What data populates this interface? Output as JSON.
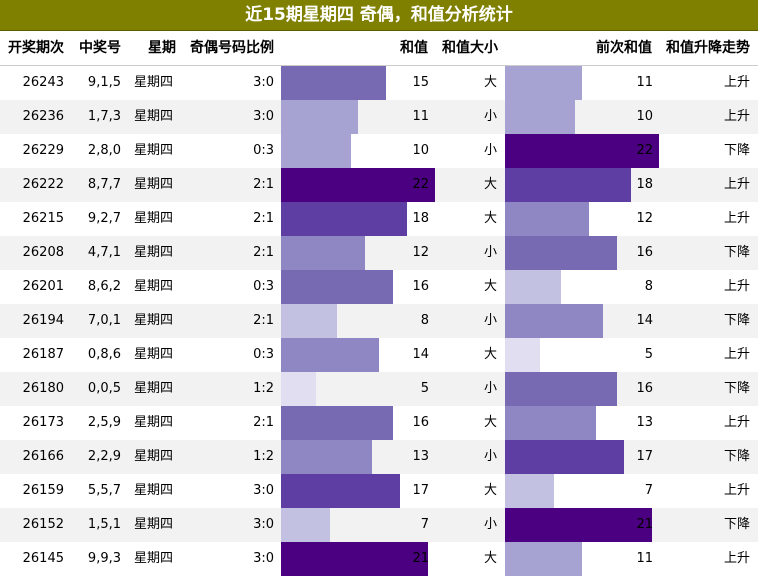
{
  "title": "近15期星期四 奇偶，和值分析统计",
  "headers": {
    "issue": "开奖期次",
    "numbers": "中奖号",
    "weekday": "星期",
    "ratio": "奇偶号码比例",
    "sum": "和值",
    "size": "和值大小",
    "prev_sum": "前次和值",
    "trend": "和值升降走势"
  },
  "bar_max": 22,
  "bar_colors": [
    "#e0def0",
    "#c3c1e2",
    "#a6a2d2",
    "#8e87c3",
    "#7769b2",
    "#5e3ea3",
    "#4b0082"
  ],
  "rows": [
    {
      "issue": "26243",
      "numbers": "9,1,5",
      "weekday": "星期四",
      "ratio": "3:0",
      "sum": 15,
      "size": "大",
      "prev_sum": 11,
      "trend": "上升"
    },
    {
      "issue": "26236",
      "numbers": "1,7,3",
      "weekday": "星期四",
      "ratio": "3:0",
      "sum": 11,
      "size": "小",
      "prev_sum": 10,
      "trend": "上升"
    },
    {
      "issue": "26229",
      "numbers": "2,8,0",
      "weekday": "星期四",
      "ratio": "0:3",
      "sum": 10,
      "size": "小",
      "prev_sum": 22,
      "trend": "下降"
    },
    {
      "issue": "26222",
      "numbers": "8,7,7",
      "weekday": "星期四",
      "ratio": "2:1",
      "sum": 22,
      "size": "大",
      "prev_sum": 18,
      "trend": "上升"
    },
    {
      "issue": "26215",
      "numbers": "9,2,7",
      "weekday": "星期四",
      "ratio": "2:1",
      "sum": 18,
      "size": "大",
      "prev_sum": 12,
      "trend": "上升"
    },
    {
      "issue": "26208",
      "numbers": "4,7,1",
      "weekday": "星期四",
      "ratio": "2:1",
      "sum": 12,
      "size": "小",
      "prev_sum": 16,
      "trend": "下降"
    },
    {
      "issue": "26201",
      "numbers": "8,6,2",
      "weekday": "星期四",
      "ratio": "0:3",
      "sum": 16,
      "size": "大",
      "prev_sum": 8,
      "trend": "上升"
    },
    {
      "issue": "26194",
      "numbers": "7,0,1",
      "weekday": "星期四",
      "ratio": "2:1",
      "sum": 8,
      "size": "小",
      "prev_sum": 14,
      "trend": "下降"
    },
    {
      "issue": "26187",
      "numbers": "0,8,6",
      "weekday": "星期四",
      "ratio": "0:3",
      "sum": 14,
      "size": "大",
      "prev_sum": 5,
      "trend": "上升"
    },
    {
      "issue": "26180",
      "numbers": "0,0,5",
      "weekday": "星期四",
      "ratio": "1:2",
      "sum": 5,
      "size": "小",
      "prev_sum": 16,
      "trend": "下降"
    },
    {
      "issue": "26173",
      "numbers": "2,5,9",
      "weekday": "星期四",
      "ratio": "2:1",
      "sum": 16,
      "size": "大",
      "prev_sum": 13,
      "trend": "上升"
    },
    {
      "issue": "26166",
      "numbers": "2,2,9",
      "weekday": "星期四",
      "ratio": "1:2",
      "sum": 13,
      "size": "小",
      "prev_sum": 17,
      "trend": "下降"
    },
    {
      "issue": "26159",
      "numbers": "5,5,7",
      "weekday": "星期四",
      "ratio": "3:0",
      "sum": 17,
      "size": "大",
      "prev_sum": 7,
      "trend": "上升"
    },
    {
      "issue": "26152",
      "numbers": "1,5,1",
      "weekday": "星期四",
      "ratio": "3:0",
      "sum": 7,
      "size": "小",
      "prev_sum": 21,
      "trend": "下降"
    },
    {
      "issue": "26145",
      "numbers": "9,9,3",
      "weekday": "星期四",
      "ratio": "3:0",
      "sum": 21,
      "size": "大",
      "prev_sum": 11,
      "trend": "上升"
    }
  ]
}
